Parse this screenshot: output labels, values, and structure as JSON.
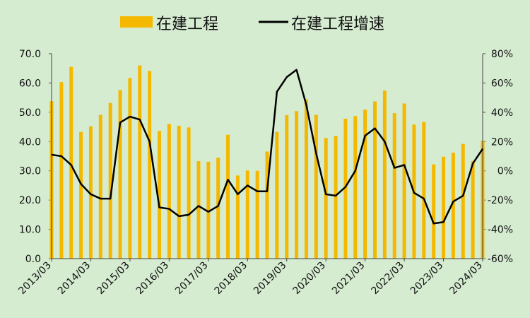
{
  "chart_data": {
    "type": "bar+line",
    "legend": [
      {
        "name": "在建工程",
        "kind": "bar",
        "color": "#f5b800"
      },
      {
        "name": "在建工程增速",
        "kind": "line",
        "color": "#000000"
      }
    ],
    "x_tick_labels": [
      "2013/03",
      "2014/03",
      "2015/03",
      "2016/03",
      "2017/03",
      "2018/03",
      "2019/03",
      "2020/03",
      "2021/03",
      "2022/03",
      "2023/03",
      "2024/03"
    ],
    "left_axis": {
      "min": 0,
      "max": 70,
      "ticks": [
        "0.0",
        "10.0",
        "20.0",
        "30.0",
        "40.0",
        "50.0",
        "60.0",
        "70.0"
      ]
    },
    "right_axis": {
      "min": -60,
      "max": 80,
      "ticks": [
        "-60%",
        "-40%",
        "-20%",
        "0%",
        "20%",
        "40%",
        "60%",
        "80%"
      ]
    },
    "series": [
      {
        "name": "在建工程",
        "values": [
          53.8,
          60.3,
          65.5,
          43.3,
          45.2,
          49.1,
          53.2,
          57.6,
          61.7,
          66.0,
          64.1,
          43.6,
          46.0,
          45.4,
          44.8,
          33.3,
          33.1,
          34.5,
          42.3,
          28.4,
          30.1,
          30.0,
          36.6,
          43.3,
          49.0,
          50.4,
          54.4,
          49.1,
          41.2,
          41.9,
          47.8,
          48.7,
          50.9,
          53.7,
          57.4,
          49.7,
          53.0,
          45.8,
          46.7,
          32.2,
          34.8,
          36.2,
          39.2,
          33.3,
          40.3
        ]
      },
      {
        "name": "在建工程增速",
        "values": [
          11,
          10,
          4,
          -9,
          -16,
          -19,
          -19,
          33,
          37,
          35,
          20,
          -25,
          -26,
          -31,
          -30,
          -24,
          -28,
          -24,
          -6,
          -16,
          -10,
          -14,
          -14,
          54,
          64,
          69,
          45,
          12,
          -16,
          -17,
          -11,
          0,
          24,
          29,
          20,
          2,
          4,
          -15,
          -19,
          -36,
          -35,
          -21,
          -17,
          5,
          15
        ]
      }
    ]
  }
}
